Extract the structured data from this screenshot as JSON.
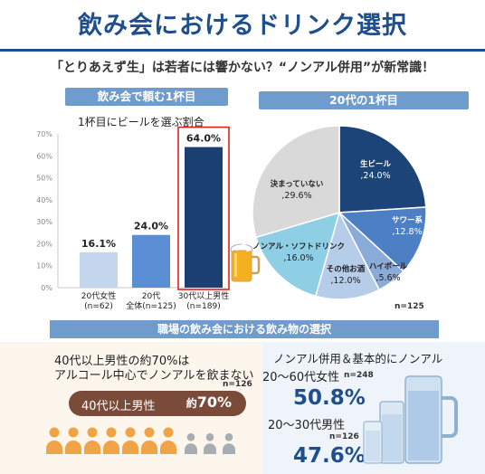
{
  "header": {
    "title": "飲み会におけるドリンク選択",
    "subtitle": "「とりあえず生」は若者には響かない？“ノンアル併用”が新常識！"
  },
  "chart_data": [
    {
      "type": "bar",
      "panel_title": "飲み会で頼む1杯目",
      "title": "1杯目にビールを選ぶ割合",
      "categories": [
        "20代女性\n(n=62)",
        "20代\n全体(n=125)",
        "30代以上男性\n(n=189)"
      ],
      "values": [
        16.1,
        24.0,
        64.0
      ],
      "value_labels": [
        "16.1%",
        "24.0%",
        "64.0%"
      ],
      "colors": [
        "#c3d6ee",
        "#5b8fd5",
        "#1c3f73"
      ],
      "highlight_index": 2,
      "highlight_color": "#e0201b",
      "ylim": [
        0,
        70
      ],
      "yticks": [
        "0%",
        "10%",
        "20%",
        "30%",
        "40%",
        "50%",
        "60%",
        "70%"
      ]
    },
    {
      "type": "pie",
      "panel_title": "20代の1杯目",
      "n_label": "n=125",
      "slices": [
        {
          "label": "生ビール",
          "value": 24.0,
          "value_label": ",24.0%",
          "color": "#1c4479"
        },
        {
          "label": "サワー系",
          "value": 12.8,
          "value_label": ",12.8%",
          "color": "#4d7fc4"
        },
        {
          "label": "ハイボール",
          "value": 5.6,
          "value_label": ",5.6%",
          "color": "#8aaad8"
        },
        {
          "label": "その他お酒",
          "value": 12.0,
          "value_label": ",12.0%",
          "color": "#b5cde8"
        },
        {
          "label": "ノンアル・ソフトドリンク",
          "value": 16.0,
          "value_label": ",16.0%",
          "color": "#8fcfe6"
        },
        {
          "label": "決まっていない",
          "value": 29.6,
          "value_label": ",29.6%",
          "color": "#d9d9d9"
        }
      ]
    }
  ],
  "workplace": {
    "banner": "職場の飲み会における飲み物の選択",
    "left": {
      "line1": "40代以上男性の約70%は",
      "line2": "アルコール中心でノンアルを飲まない",
      "n": "n=126",
      "pill_label": "40代以上男性",
      "pill_prefix": "約",
      "pill_value": "70%",
      "people_total": 10,
      "people_highlighted": 7,
      "highlight_color": "#f0a445",
      "rest_color": "#a8adb2"
    },
    "right": {
      "heading": "ノンアル併用＆基本的にノンアル",
      "group1": "20～60代女性",
      "n1": "n=248",
      "value1": "50.8%",
      "group2": "20～30代男性",
      "n2": "n=126",
      "value2": "47.6%"
    }
  }
}
